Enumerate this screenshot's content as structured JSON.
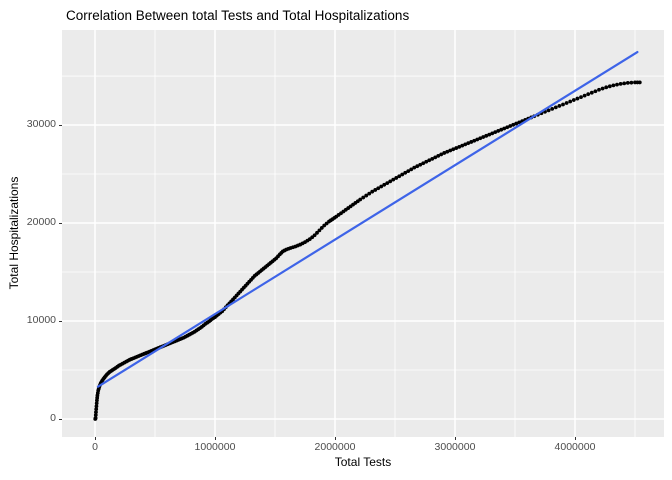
{
  "chart_data": {
    "type": "scatter",
    "title": "Correlation Between total Tests and Total Hospitalizations",
    "xlabel": "Total Tests",
    "ylabel": "Total Hospitalizations",
    "x_ticks": [
      0,
      1000000,
      2000000,
      3000000,
      4000000
    ],
    "x_tick_labels": [
      "0",
      "1000000",
      "2000000",
      "3000000",
      "4000000"
    ],
    "x_minor_ticks": [
      500000,
      1500000,
      2500000,
      3500000,
      4500000
    ],
    "y_ticks": [
      0,
      10000,
      20000,
      30000
    ],
    "y_tick_labels": [
      "0",
      "10000",
      "20000",
      "30000"
    ],
    "y_minor_ticks": [
      5000,
      15000,
      25000,
      35000
    ],
    "xlim": [
      -275000,
      4741667
    ],
    "ylim": [
      -1840,
      39700
    ],
    "grid": {
      "major": true,
      "minor": true,
      "position": "panel"
    },
    "legend": "none",
    "points": [
      [
        2000,
        0
      ],
      [
        5000,
        100
      ],
      [
        8000,
        700
      ],
      [
        12000,
        1300
      ],
      [
        16000,
        1900
      ],
      [
        20000,
        2400
      ],
      [
        27000,
        2900
      ],
      [
        36000,
        3300
      ],
      [
        48000,
        3650
      ],
      [
        62000,
        3950
      ],
      [
        80000,
        4250
      ],
      [
        100000,
        4550
      ],
      [
        122000,
        4800
      ],
      [
        146000,
        5000
      ],
      [
        172000,
        5200
      ],
      [
        200000,
        5450
      ],
      [
        230000,
        5650
      ],
      [
        260000,
        5850
      ],
      [
        290000,
        6050
      ],
      [
        320000,
        6200
      ],
      [
        350000,
        6350
      ],
      [
        380000,
        6500
      ],
      [
        410000,
        6650
      ],
      [
        440000,
        6800
      ],
      [
        470000,
        6950
      ],
      [
        500000,
        7100
      ],
      [
        530000,
        7250
      ],
      [
        560000,
        7400
      ],
      [
        590000,
        7550
      ],
      [
        620000,
        7700
      ],
      [
        650000,
        7850
      ],
      [
        680000,
        8000
      ],
      [
        710000,
        8150
      ],
      [
        740000,
        8300
      ],
      [
        770000,
        8500
      ],
      [
        800000,
        8700
      ],
      [
        830000,
        8900
      ],
      [
        860000,
        9150
      ],
      [
        890000,
        9400
      ],
      [
        920000,
        9700
      ],
      [
        950000,
        9950
      ],
      [
        975000,
        10200
      ],
      [
        1000000,
        10400
      ],
      [
        1030000,
        10700
      ],
      [
        1060000,
        11000
      ],
      [
        1090000,
        11400
      ],
      [
        1120000,
        11800
      ],
      [
        1150000,
        12200
      ],
      [
        1180000,
        12600
      ],
      [
        1210000,
        13000
      ],
      [
        1240000,
        13400
      ],
      [
        1270000,
        13800
      ],
      [
        1300000,
        14200
      ],
      [
        1330000,
        14600
      ],
      [
        1360000,
        14900
      ],
      [
        1390000,
        15200
      ],
      [
        1420000,
        15500
      ],
      [
        1450000,
        15800
      ],
      [
        1480000,
        16100
      ],
      [
        1510000,
        16400
      ],
      [
        1540000,
        16800
      ],
      [
        1565000,
        17100
      ],
      [
        1595000,
        17300
      ],
      [
        1630000,
        17450
      ],
      [
        1670000,
        17600
      ],
      [
        1710000,
        17800
      ],
      [
        1750000,
        18050
      ],
      [
        1790000,
        18350
      ],
      [
        1830000,
        18750
      ],
      [
        1870000,
        19250
      ],
      [
        1910000,
        19750
      ],
      [
        1950000,
        20150
      ],
      [
        1980000,
        20400
      ],
      [
        2010000,
        20650
      ],
      [
        2050000,
        21000
      ],
      [
        2090000,
        21350
      ],
      [
        2130000,
        21700
      ],
      [
        2170000,
        22050
      ],
      [
        2210000,
        22400
      ],
      [
        2260000,
        22800
      ],
      [
        2310000,
        23200
      ],
      [
        2360000,
        23550
      ],
      [
        2410000,
        23900
      ],
      [
        2460000,
        24250
      ],
      [
        2510000,
        24600
      ],
      [
        2560000,
        24950
      ],
      [
        2610000,
        25300
      ],
      [
        2660000,
        25650
      ],
      [
        2710000,
        25950
      ],
      [
        2760000,
        26250
      ],
      [
        2810000,
        26550
      ],
      [
        2860000,
        26850
      ],
      [
        2910000,
        27150
      ],
      [
        2960000,
        27400
      ],
      [
        3010000,
        27650
      ],
      [
        3060000,
        27900
      ],
      [
        3110000,
        28150
      ],
      [
        3160000,
        28400
      ],
      [
        3210000,
        28650
      ],
      [
        3260000,
        28900
      ],
      [
        3310000,
        29150
      ],
      [
        3360000,
        29400
      ],
      [
        3410000,
        29650
      ],
      [
        3460000,
        29900
      ],
      [
        3510000,
        30150
      ],
      [
        3560000,
        30400
      ],
      [
        3610000,
        30650
      ],
      [
        3660000,
        30900
      ],
      [
        3720000,
        31200
      ],
      [
        3780000,
        31500
      ],
      [
        3840000,
        31800
      ],
      [
        3900000,
        32100
      ],
      [
        3960000,
        32400
      ],
      [
        4020000,
        32700
      ],
      [
        4080000,
        33000
      ],
      [
        4140000,
        33300
      ],
      [
        4200000,
        33600
      ],
      [
        4260000,
        33850
      ],
      [
        4320000,
        34050
      ],
      [
        4380000,
        34200
      ],
      [
        4440000,
        34300
      ],
      [
        4500000,
        34350
      ],
      [
        4540000,
        34350
      ]
    ],
    "regression_line": {
      "x1": 25000,
      "y1": 3300,
      "x2": 4520000,
      "y2": 37450
    },
    "colors": {
      "panel_bg": "#ebebeb",
      "grid": "#ffffff",
      "point": "#000000",
      "line": "#3e64e8",
      "tick_text": "#4d4d4d",
      "title_text": "#000000",
      "tick_mark": "#333333"
    }
  }
}
